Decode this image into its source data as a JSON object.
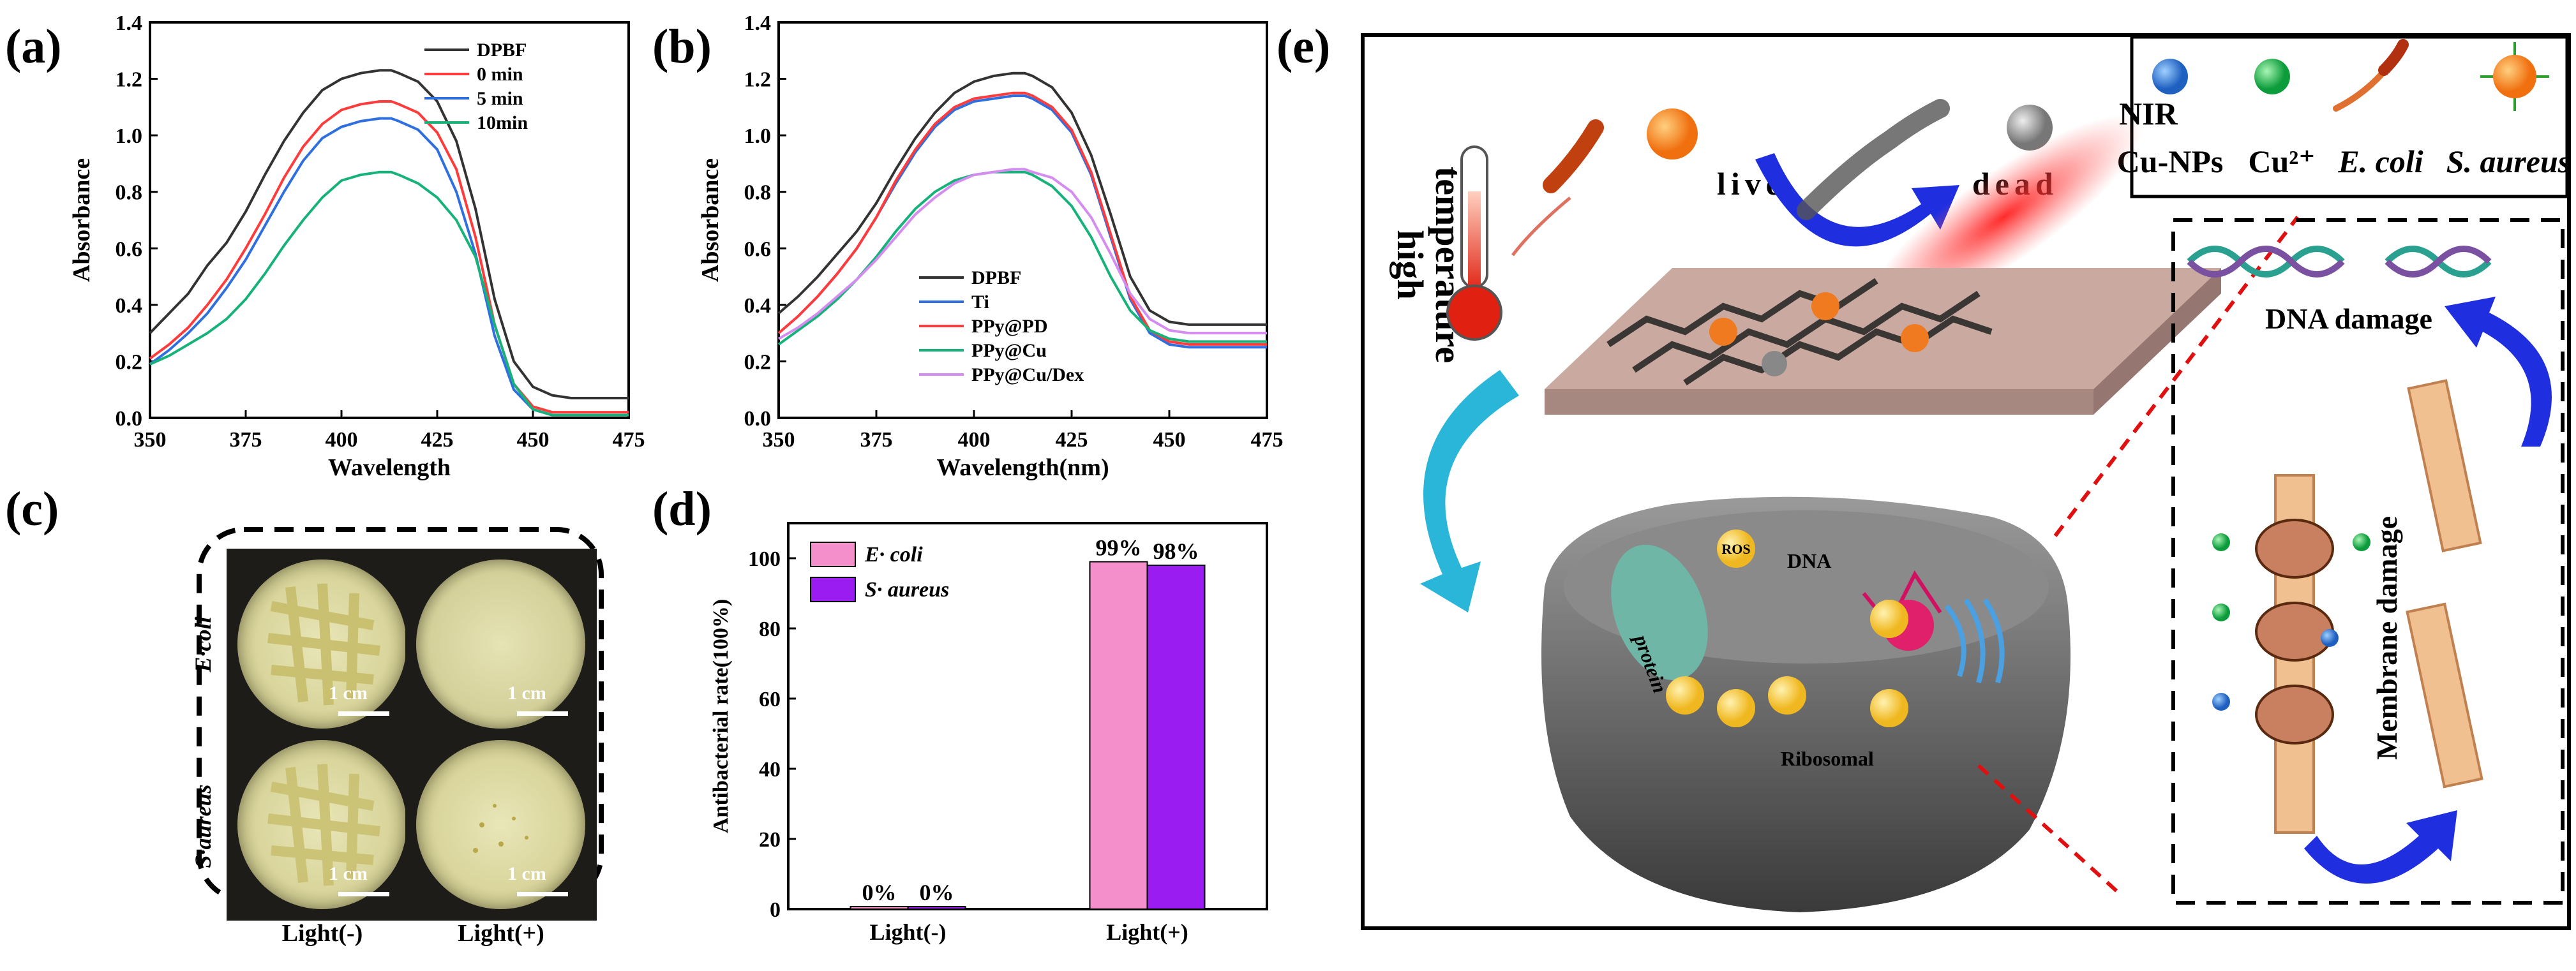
{
  "panels": {
    "a": {
      "label": "(a)"
    },
    "b": {
      "label": "(b)"
    },
    "c": {
      "label": "(c)",
      "rows": [
        "E·coli",
        "S·aureus"
      ],
      "cols": [
        "Light(-)",
        "Light(+)"
      ],
      "scale": "1 cm"
    },
    "d": {
      "label": "(d)"
    },
    "e": {
      "label": "(e)",
      "legend": [
        "Cu-NPs",
        "Cu²⁺",
        "E. coli",
        "S. aureus"
      ],
      "texts": {
        "high": "high",
        "temperature": "temperature",
        "live": "live",
        "dead": "dead",
        "nir": "NIR",
        "dna_damage": "DNA damage",
        "membrane_damage": "Membrane damage",
        "dna": "DNA",
        "protein": "protein",
        "ribosomal": "Ribosomal",
        "ros": "ROS"
      }
    }
  },
  "chart_data": [
    {
      "type": "line",
      "panel": "a",
      "xlabel": "Wavelength",
      "ylabel": "Absorbance",
      "xlim": [
        350,
        475
      ],
      "ylim": [
        0.0,
        1.4
      ],
      "xticks": [
        350,
        375,
        400,
        425,
        450,
        475
      ],
      "yticks": [
        0.0,
        0.2,
        0.4,
        0.6,
        0.8,
        1.0,
        1.2,
        1.4
      ],
      "legend_position": "top-right",
      "x": [
        350,
        355,
        360,
        365,
        370,
        375,
        380,
        385,
        390,
        395,
        400,
        405,
        410,
        413,
        415,
        420,
        425,
        430,
        435,
        440,
        445,
        450,
        455,
        460,
        465,
        470,
        475
      ],
      "series": [
        {
          "name": "DPBF",
          "color": "#333333",
          "values": [
            0.3,
            0.37,
            0.44,
            0.54,
            0.62,
            0.73,
            0.86,
            0.98,
            1.08,
            1.16,
            1.2,
            1.22,
            1.23,
            1.23,
            1.22,
            1.19,
            1.12,
            0.98,
            0.74,
            0.42,
            0.2,
            0.11,
            0.08,
            0.07,
            0.07,
            0.07,
            0.07
          ]
        },
        {
          "name": "0 min",
          "color": "#ff3b3b",
          "values": [
            0.21,
            0.26,
            0.32,
            0.4,
            0.49,
            0.6,
            0.72,
            0.85,
            0.96,
            1.04,
            1.09,
            1.11,
            1.12,
            1.12,
            1.11,
            1.08,
            1.01,
            0.88,
            0.64,
            0.33,
            0.12,
            0.04,
            0.02,
            0.02,
            0.02,
            0.02,
            0.02
          ]
        },
        {
          "name": "5 min",
          "color": "#2f6fe0",
          "values": [
            0.19,
            0.24,
            0.3,
            0.37,
            0.46,
            0.56,
            0.68,
            0.8,
            0.91,
            0.99,
            1.03,
            1.05,
            1.06,
            1.06,
            1.05,
            1.02,
            0.95,
            0.8,
            0.58,
            0.29,
            0.1,
            0.03,
            0.01,
            0.01,
            0.01,
            0.01,
            0.01
          ]
        },
        {
          "name": "10min",
          "color": "#16b27a",
          "values": [
            0.19,
            0.22,
            0.26,
            0.3,
            0.35,
            0.42,
            0.51,
            0.61,
            0.7,
            0.78,
            0.84,
            0.86,
            0.87,
            0.87,
            0.86,
            0.83,
            0.78,
            0.7,
            0.57,
            0.33,
            0.12,
            0.03,
            0.01,
            0.01,
            0.01,
            0.01,
            0.01
          ]
        }
      ]
    },
    {
      "type": "line",
      "panel": "b",
      "xlabel": "Wavelength(nm)",
      "ylabel": "Absorbance",
      "xlim": [
        350,
        475
      ],
      "ylim": [
        0.0,
        1.4
      ],
      "xticks": [
        350,
        375,
        400,
        425,
        450,
        475
      ],
      "yticks": [
        0.0,
        0.2,
        0.4,
        0.6,
        0.8,
        1.0,
        1.2,
        1.4
      ],
      "legend_position": "bottom-center",
      "x": [
        350,
        355,
        360,
        365,
        370,
        375,
        380,
        385,
        390,
        395,
        400,
        405,
        410,
        413,
        415,
        420,
        425,
        430,
        435,
        440,
        445,
        450,
        455,
        460,
        465,
        470,
        475
      ],
      "series": [
        {
          "name": "DPBF",
          "color": "#333333",
          "values": [
            0.37,
            0.43,
            0.5,
            0.58,
            0.66,
            0.76,
            0.88,
            0.99,
            1.08,
            1.15,
            1.19,
            1.21,
            1.22,
            1.22,
            1.21,
            1.17,
            1.08,
            0.93,
            0.72,
            0.5,
            0.38,
            0.34,
            0.33,
            0.33,
            0.33,
            0.33,
            0.33
          ]
        },
        {
          "name": "Ti",
          "color": "#2f6fe0",
          "values": [
            0.3,
            0.36,
            0.43,
            0.51,
            0.6,
            0.71,
            0.83,
            0.94,
            1.03,
            1.09,
            1.12,
            1.13,
            1.14,
            1.14,
            1.13,
            1.09,
            1.01,
            0.86,
            0.64,
            0.42,
            0.3,
            0.26,
            0.25,
            0.25,
            0.25,
            0.25,
            0.25
          ]
        },
        {
          "name": "PPy@PD",
          "color": "#ff3b3b",
          "values": [
            0.3,
            0.36,
            0.43,
            0.51,
            0.6,
            0.71,
            0.84,
            0.95,
            1.04,
            1.1,
            1.13,
            1.14,
            1.15,
            1.15,
            1.14,
            1.1,
            1.02,
            0.87,
            0.65,
            0.43,
            0.31,
            0.27,
            0.26,
            0.26,
            0.26,
            0.26,
            0.26
          ]
        },
        {
          "name": "PPy@Cu",
          "color": "#16b27a",
          "values": [
            0.26,
            0.31,
            0.36,
            0.42,
            0.49,
            0.57,
            0.66,
            0.74,
            0.8,
            0.84,
            0.86,
            0.87,
            0.87,
            0.87,
            0.86,
            0.82,
            0.75,
            0.64,
            0.5,
            0.38,
            0.31,
            0.28,
            0.27,
            0.27,
            0.27,
            0.27,
            0.27
          ]
        },
        {
          "name": "PPy@Cu/Dex",
          "color": "#d58cf0",
          "values": [
            0.28,
            0.32,
            0.37,
            0.43,
            0.49,
            0.56,
            0.64,
            0.72,
            0.78,
            0.83,
            0.86,
            0.87,
            0.88,
            0.88,
            0.87,
            0.85,
            0.8,
            0.71,
            0.58,
            0.44,
            0.35,
            0.31,
            0.3,
            0.3,
            0.3,
            0.3,
            0.3
          ]
        }
      ]
    },
    {
      "type": "bar",
      "panel": "d",
      "ylabel": "Antibacterial rate(100%)",
      "ylim": [
        0,
        110
      ],
      "yticks": [
        0,
        20,
        40,
        60,
        80,
        100
      ],
      "categories": [
        "Light(-)",
        "Light(+)"
      ],
      "legend_position": "top-left",
      "series": [
        {
          "name": "E· coli",
          "color": "#f58fcb",
          "values": [
            0,
            99
          ],
          "labels": [
            "0%",
            "99%"
          ]
        },
        {
          "name": "S· aureus",
          "color": "#9b1cf0",
          "values": [
            0,
            98
          ],
          "labels": [
            "0%",
            "98%"
          ]
        }
      ]
    }
  ]
}
